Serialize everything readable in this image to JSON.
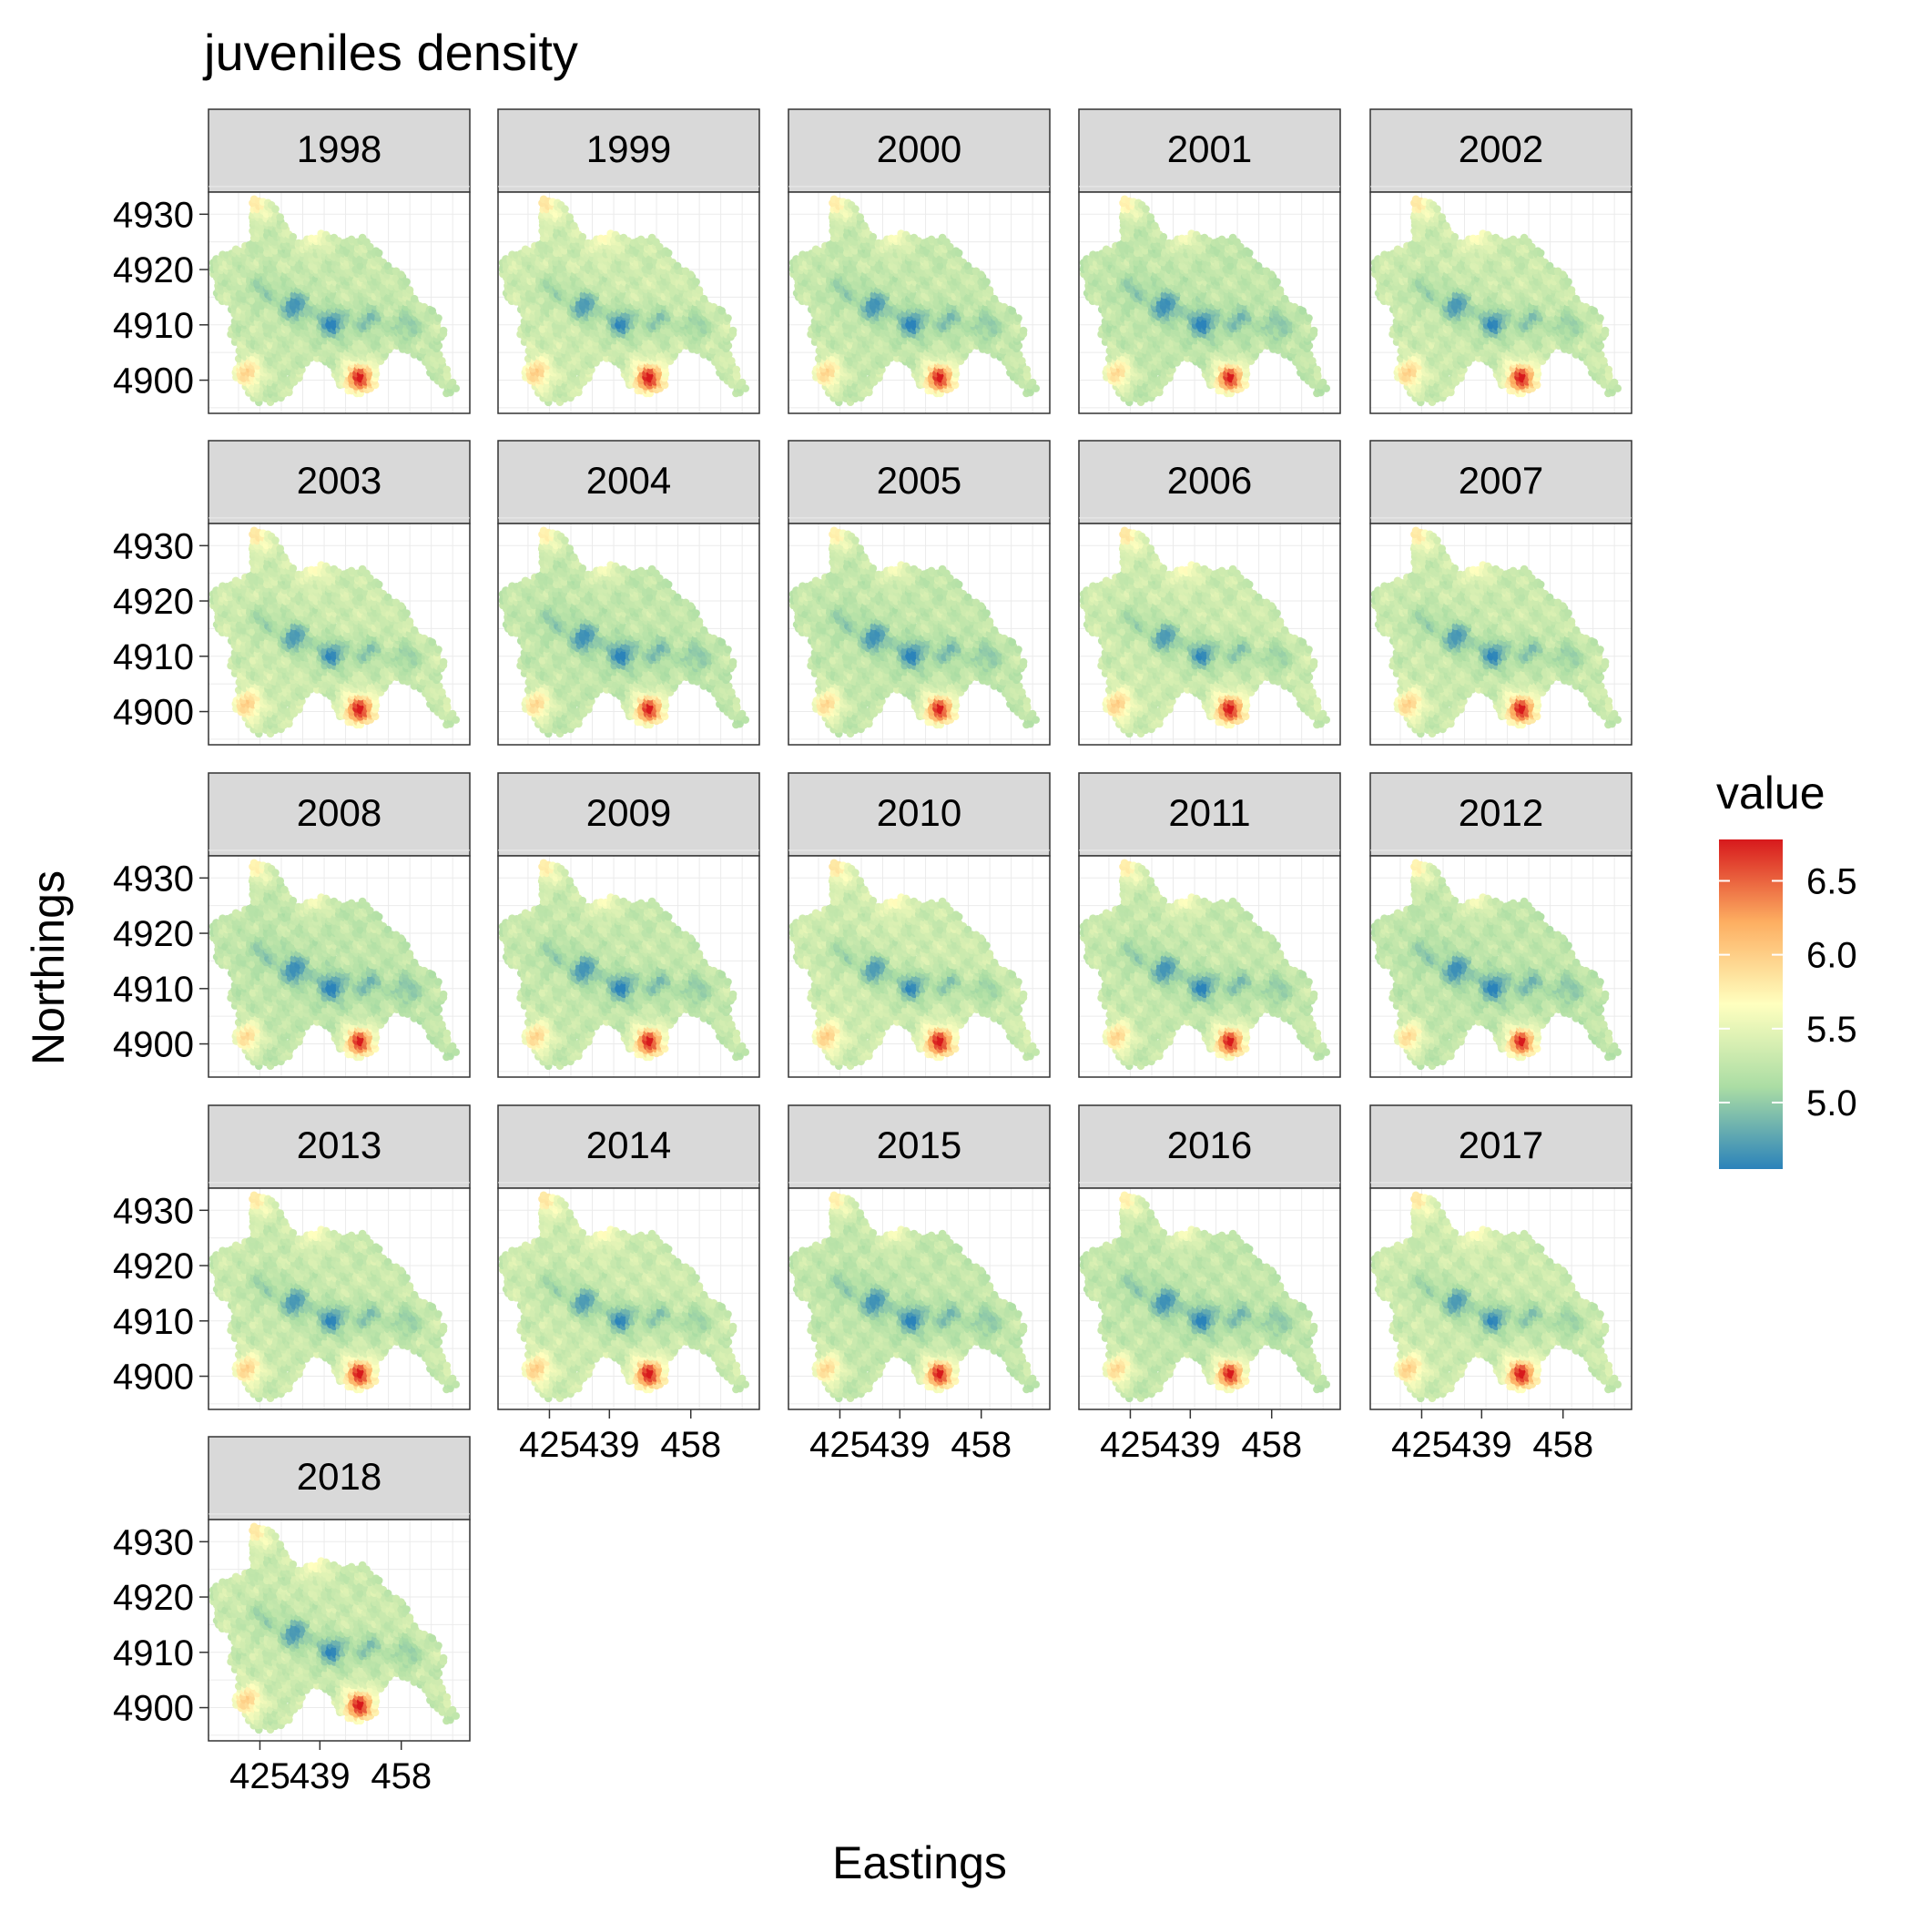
{
  "chart_data": {
    "type": "heatmap",
    "title": "juveniles density",
    "xlabel": "Eastings",
    "ylabel": "Northings",
    "facets": [
      "1998",
      "1999",
      "2000",
      "2001",
      "2002",
      "2003",
      "2004",
      "2005",
      "2006",
      "2007",
      "2008",
      "2009",
      "2010",
      "2011",
      "2012",
      "2013",
      "2014",
      "2015",
      "2016",
      "2017",
      "2018"
    ],
    "x_ticks": [
      425,
      439,
      458
    ],
    "y_ticks": [
      4900,
      4910,
      4920,
      4930
    ],
    "xlim": [
      413,
      474
    ],
    "ylim": [
      4894,
      4934
    ],
    "grid": true,
    "legend": {
      "title": "value",
      "position": "right",
      "ticks": [
        "5.0",
        "5.5",
        "6.0",
        "6.5"
      ],
      "range": [
        4.55,
        6.78
      ],
      "colors": [
        "#2B83BA",
        "#ABDDA4",
        "#FFFFBF",
        "#FDAE61",
        "#D7191C"
      ]
    },
    "spatial_pattern": {
      "baseline": 5.3,
      "hotspots": [
        {
          "easting": 422.5,
          "northing": 4901.5,
          "value": 6.0
        },
        {
          "easting": 448.5,
          "northing": 4900.5,
          "value": 6.75
        },
        {
          "easting": 424.5,
          "northing": 4931.5,
          "value": 5.75
        },
        {
          "easting": 438.0,
          "northing": 4926.0,
          "value": 5.65
        }
      ],
      "coldspots": [
        {
          "easting": 433.5,
          "northing": 4913.5,
          "value": 4.6
        },
        {
          "easting": 442.0,
          "northing": 4910.5,
          "value": 4.55
        },
        {
          "easting": 450.5,
          "northing": 4911.0,
          "value": 4.9
        },
        {
          "easting": 459.5,
          "northing": 4910.0,
          "value": 4.95
        },
        {
          "easting": 426.0,
          "northing": 4916.5,
          "value": 5.0
        }
      ]
    }
  }
}
